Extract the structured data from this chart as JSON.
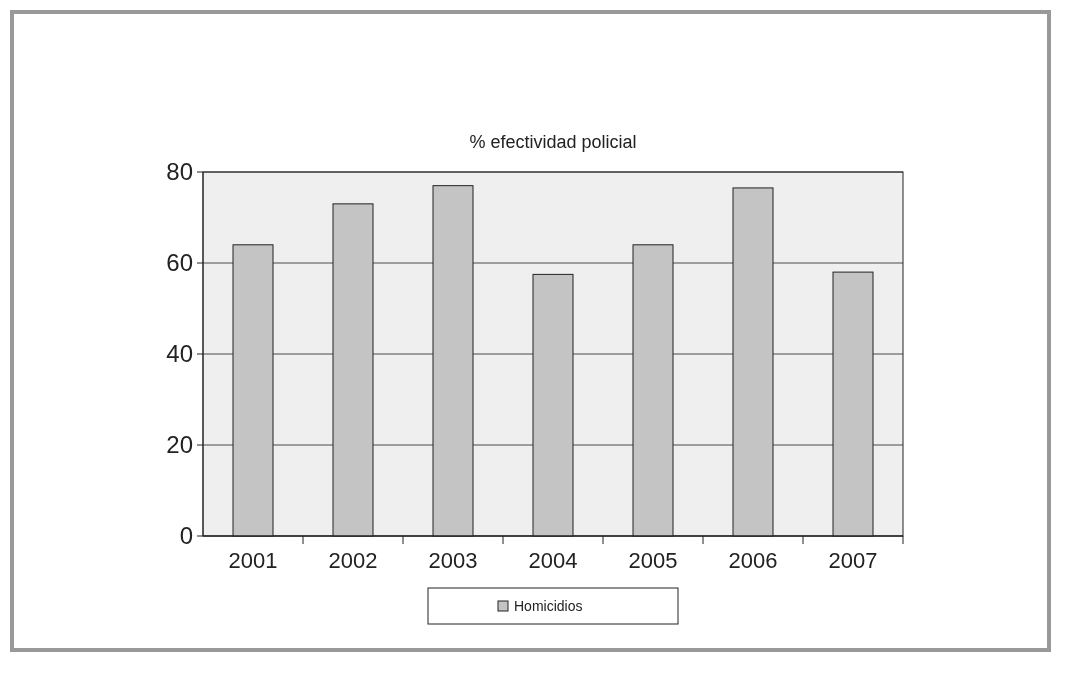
{
  "chart_data": {
    "type": "bar",
    "title": "% efectividad policial",
    "categories": [
      "2001",
      "2002",
      "2003",
      "2004",
      "2005",
      "2006",
      "2007"
    ],
    "series": [
      {
        "name": "Homicidios",
        "color": "#c4c4c4",
        "values": [
          64,
          73,
          77,
          57.5,
          64,
          76.5,
          58
        ]
      }
    ],
    "ylim": [
      0,
      80
    ],
    "yticks": [
      0,
      20,
      40,
      60,
      80
    ],
    "grid": "y",
    "legend": "bottom"
  }
}
